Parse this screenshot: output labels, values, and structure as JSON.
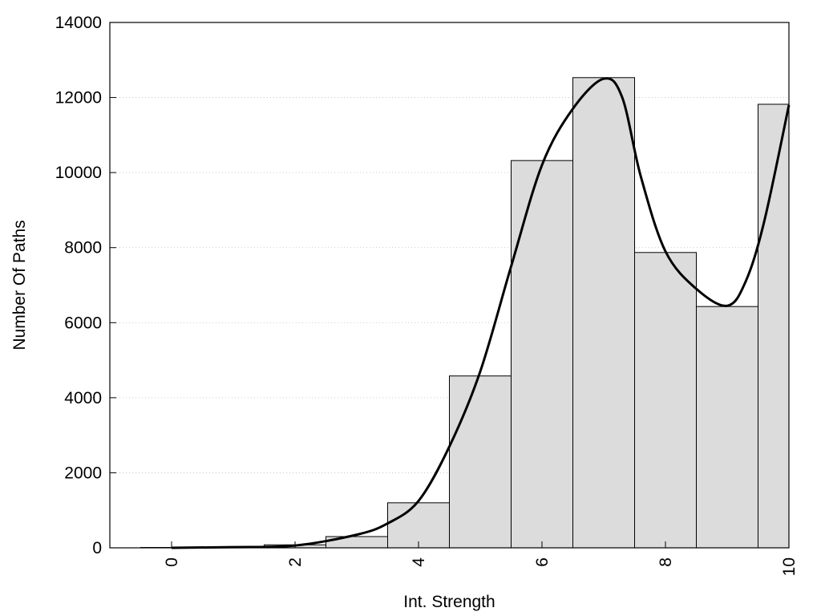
{
  "chart_data": {
    "type": "bar",
    "title": "",
    "xlabel": "Int. Strength",
    "ylabel": "Number Of Paths",
    "xlim": [
      -1,
      10
    ],
    "ylim": [
      0,
      14000
    ],
    "x_ticks": [
      "0",
      "2",
      "4",
      "6",
      "8",
      "10"
    ],
    "y_ticks": [
      "0",
      "2000",
      "4000",
      "6000",
      "8000",
      "10000",
      "12000",
      "14000"
    ],
    "grid": "horizontal dotted",
    "categories": [
      "0",
      "1",
      "2",
      "3",
      "4",
      "5",
      "6",
      "7",
      "8",
      "9",
      "10"
    ],
    "values": [
      10,
      20,
      80,
      300,
      1200,
      4580,
      10320,
      12530,
      7870,
      6430,
      11820
    ],
    "curve": {
      "x": [
        0,
        1,
        2,
        3,
        3.5,
        4,
        4.5,
        5,
        5.5,
        6,
        6.5,
        7,
        7.3,
        7.6,
        8,
        8.5,
        9,
        9.3,
        9.6,
        10
      ],
      "y": [
        0,
        20,
        60,
        350,
        650,
        1250,
        2700,
        4700,
        7500,
        10200,
        11700,
        12500,
        12000,
        9900,
        7900,
        6900,
        6450,
        7100,
        8700,
        11800
      ]
    }
  }
}
